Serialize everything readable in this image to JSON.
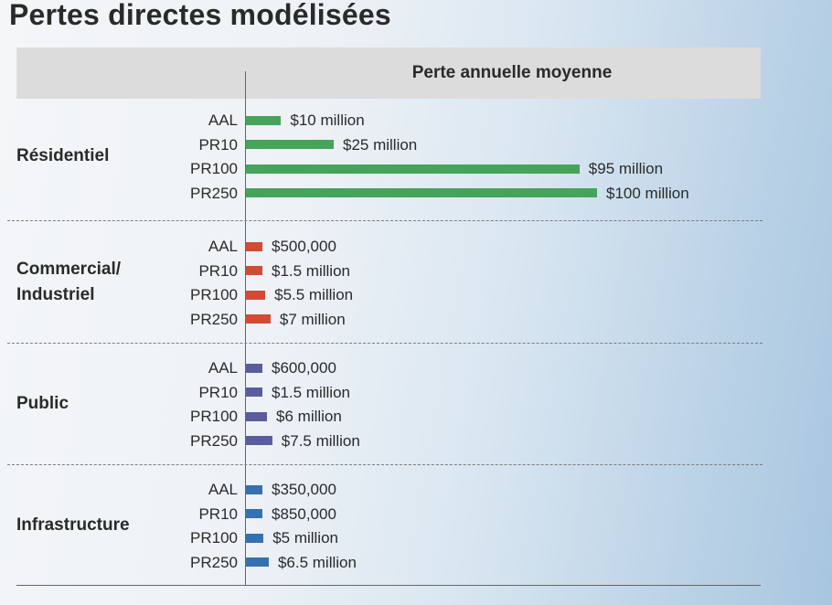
{
  "title": "Pertes directes modélisées",
  "header": "Perte annuelle moyenne",
  "chart_data": {
    "type": "bar",
    "orientation": "horizontal",
    "title": "Pertes directes modélisées",
    "column_header": "Perte annuelle moyenne",
    "groups": [
      {
        "name": "Résidentiel",
        "color": "#46a35a",
        "rows": [
          {
            "label": "AAL",
            "value": 10000000,
            "text": "$10 million"
          },
          {
            "label": "PR10",
            "value": 25000000,
            "text": "$25 million"
          },
          {
            "label": "PR100",
            "value": 95000000,
            "text": "$95 million"
          },
          {
            "label": "PR250",
            "value": 100000000,
            "text": "$100 million"
          }
        ]
      },
      {
        "name": "Commercial/\nIndustriel",
        "color": "#d24b35",
        "rows": [
          {
            "label": "AAL",
            "value": 500000,
            "text": "$500,000"
          },
          {
            "label": "PR10",
            "value": 1500000,
            "text": "$1.5 million"
          },
          {
            "label": "PR100",
            "value": 5500000,
            "text": "$5.5 million"
          },
          {
            "label": "PR250",
            "value": 7000000,
            "text": "$7 million"
          }
        ]
      },
      {
        "name": "Public",
        "color": "#5b5c9e",
        "rows": [
          {
            "label": "AAL",
            "value": 600000,
            "text": "$600,000"
          },
          {
            "label": "PR10",
            "value": 1500000,
            "text": "$1.5 million"
          },
          {
            "label": "PR100",
            "value": 6000000,
            "text": "$6 million"
          },
          {
            "label": "PR250",
            "value": 7500000,
            "text": "$7.5 million"
          }
        ]
      },
      {
        "name": "Infrastructure",
        "color": "#3571ae",
        "rows": [
          {
            "label": "AAL",
            "value": 350000,
            "text": "$350,000"
          },
          {
            "label": "PR10",
            "value": 850000,
            "text": "$850,000"
          },
          {
            "label": "PR100",
            "value": 5000000,
            "text": "$5 million"
          },
          {
            "label": "PR250",
            "value": 6500000,
            "text": "$6.5 million"
          }
        ]
      }
    ]
  }
}
